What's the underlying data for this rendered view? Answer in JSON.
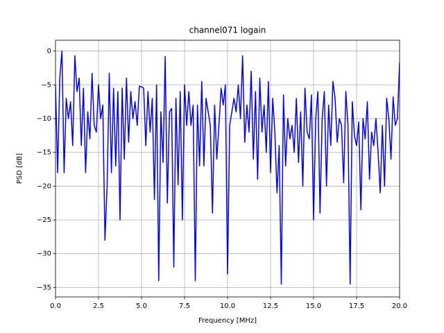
{
  "chart_data": {
    "type": "line",
    "title": "channel071 logain",
    "xlabel": "Frequency [MHz]",
    "ylabel": "PSD [dB]",
    "x": [
      0,
      0.125,
      0.25,
      0.375,
      0.5,
      0.625,
      0.75,
      0.875,
      1,
      1.125,
      1.25,
      1.375,
      1.5,
      1.625,
      1.75,
      1.875,
      2,
      2.125,
      2.25,
      2.375,
      2.5,
      2.625,
      2.75,
      2.875,
      3,
      3.125,
      3.25,
      3.375,
      3.5,
      3.625,
      3.75,
      3.875,
      4,
      4.125,
      4.25,
      4.375,
      4.5,
      4.625,
      4.75,
      4.875,
      5,
      5.125,
      5.25,
      5.375,
      5.5,
      5.625,
      5.75,
      5.875,
      6,
      6.125,
      6.25,
      6.375,
      6.5,
      6.625,
      6.75,
      6.875,
      7,
      7.125,
      7.25,
      7.375,
      7.5,
      7.625,
      7.75,
      7.875,
      8,
      8.125,
      8.25,
      8.375,
      8.5,
      8.625,
      8.75,
      8.875,
      9,
      9.125,
      9.25,
      9.375,
      9.5,
      9.625,
      9.75,
      9.875,
      10,
      10.125,
      10.25,
      10.375,
      10.5,
      10.625,
      10.75,
      10.875,
      11,
      11.125,
      11.25,
      11.375,
      11.5,
      11.625,
      11.75,
      11.875,
      12,
      12.125,
      12.25,
      12.375,
      12.5,
      12.625,
      12.75,
      12.875,
      13,
      13.125,
      13.25,
      13.375,
      13.5,
      13.625,
      13.75,
      13.875,
      14,
      14.125,
      14.25,
      14.375,
      14.5,
      14.625,
      14.75,
      14.875,
      15,
      15.125,
      15.25,
      15.375,
      15.5,
      15.625,
      15.75,
      15.875,
      16,
      16.125,
      16.25,
      16.375,
      16.5,
      16.625,
      16.75,
      16.875,
      17,
      17.125,
      17.25,
      17.375,
      17.5,
      17.625,
      17.75,
      17.875,
      18,
      18.125,
      18.25,
      18.375,
      18.5,
      18.625,
      18.75,
      18.875,
      19,
      19.125,
      19.25,
      19.375,
      19.5,
      19.625,
      19.75,
      19.875,
      20
    ],
    "series": [
      {
        "color": "#0000ff",
        "values": [
          -5,
          -18,
          -4,
          0,
          -18,
          -7,
          -10,
          -7.5,
          -14,
          -0.7,
          -6,
          -4,
          -14,
          -5.5,
          -18,
          -9,
          -13,
          -3.3,
          -11,
          -12,
          -5,
          -10,
          -8,
          -28,
          -20,
          -3.3,
          -18,
          -5.5,
          -17,
          -6,
          -25,
          -5.5,
          -16,
          -4,
          -13.5,
          -6,
          -10,
          -7.5,
          -11,
          -5.2,
          -5.3,
          -5.5,
          -14,
          -6,
          -12,
          -7,
          -22,
          -5,
          -34,
          -9,
          -16.5,
          -0.8,
          -22.5,
          -9,
          -8.5,
          -32,
          -7,
          -19.8,
          -6,
          -25,
          -5,
          -11,
          -6,
          -11,
          -8,
          -34,
          -8,
          -17,
          -4.5,
          -17,
          -7,
          -9,
          -11,
          -24,
          -8,
          -16,
          -11,
          -5.5,
          -8,
          -5,
          -33,
          -11,
          -9,
          -7,
          -9,
          -5,
          -10,
          -0.7,
          -13.5,
          -8,
          -12,
          -3,
          -16,
          -6,
          -19,
          -4,
          -12,
          -8,
          -15,
          -4.5,
          -18,
          -7,
          -12,
          -21,
          -14,
          -34.5,
          -6.5,
          -17,
          -10,
          -13,
          -11,
          -15,
          -7,
          -16.5,
          -9,
          -20,
          -5.5,
          -12,
          -13,
          -6.5,
          -25,
          -10,
          -6,
          -24,
          -10,
          -6,
          -20,
          -8,
          -14,
          -4.5,
          -7,
          -13.5,
          -10,
          -11,
          -19.5,
          -6,
          -11,
          -34.5,
          -7.5,
          -12.5,
          -14,
          -10.5,
          -23.5,
          -10,
          -13,
          -7.5,
          -19,
          -12,
          -14,
          -10,
          -15,
          -21,
          -11,
          -20,
          -7,
          -10,
          -16,
          -6.8,
          -11,
          -10,
          -1.7
        ]
      }
    ],
    "xlim": [
      0,
      20
    ],
    "xticks": [
      {
        "value": 0,
        "label": "0.0"
      },
      2.5,
      {
        "value": 5,
        "label": "5.0"
      },
      7.5,
      {
        "value": 10,
        "label": "10.0"
      },
      12.5,
      {
        "value": 15,
        "label": "15.0"
      },
      17.5,
      {
        "value": 20,
        "label": "20.0"
      }
    ],
    "ylim": [
      -36.4,
      1.6
    ],
    "yticks": [
      {
        "value": -35,
        "label": "−35"
      },
      {
        "value": -30,
        "label": "−30"
      },
      {
        "value": -25,
        "label": "−25"
      },
      {
        "value": -20,
        "label": "−20"
      },
      {
        "value": -15,
        "label": "−15"
      },
      {
        "value": -10,
        "label": "−10"
      },
      {
        "value": -5,
        "label": "−5"
      },
      0
    ],
    "grid": true
  }
}
